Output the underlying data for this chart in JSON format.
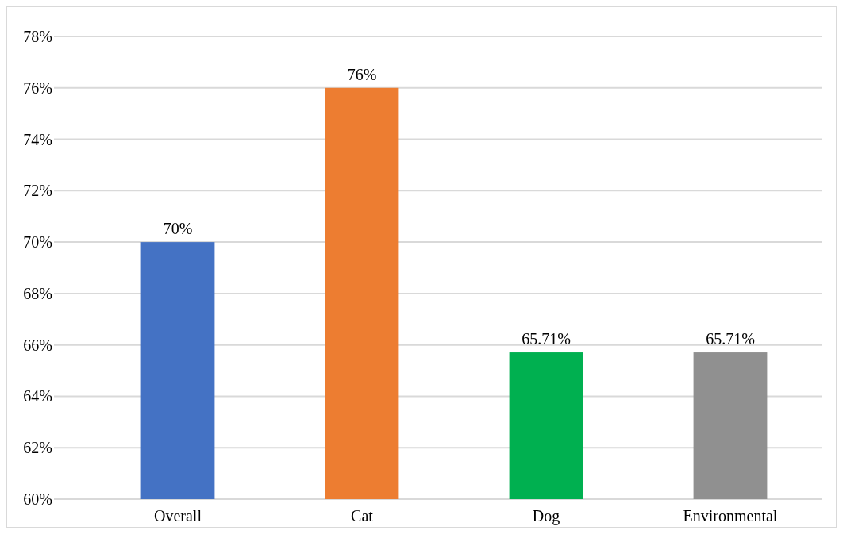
{
  "chart_data": {
    "type": "bar",
    "categories": [
      "Overall",
      "Cat",
      "Dog",
      "Environmental"
    ],
    "values": [
      70,
      76,
      65.71,
      65.71
    ],
    "colors": [
      "#4472c4",
      "#ed7d31",
      "#00b050",
      "#909090"
    ],
    "value_labels": [
      "70%",
      "76%",
      "65.71%",
      "65.71%"
    ],
    "ylim": [
      60,
      78
    ],
    "yticks": [
      {
        "value": 60,
        "label": "60%"
      },
      {
        "value": 62,
        "label": "62%"
      },
      {
        "value": 64,
        "label": "64%"
      },
      {
        "value": 66,
        "label": "66%"
      },
      {
        "value": 68,
        "label": "68%"
      },
      {
        "value": 70,
        "label": "70%"
      },
      {
        "value": 72,
        "label": "72%"
      },
      {
        "value": 74,
        "label": "74%"
      },
      {
        "value": 76,
        "label": "76%"
      },
      {
        "value": 78,
        "label": "78%"
      }
    ],
    "grid": "y"
  }
}
